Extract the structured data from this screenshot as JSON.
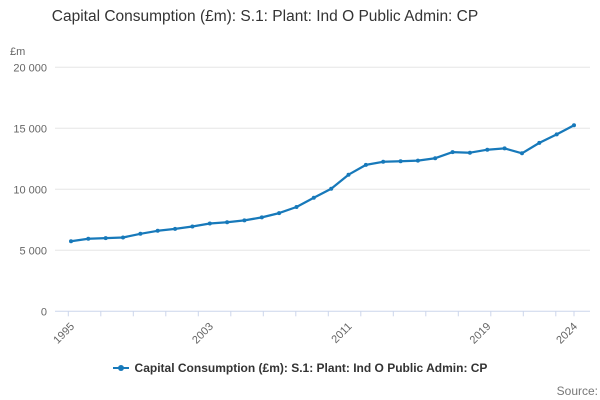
{
  "title": "Capital Consumption (£m): S.1: Plant: Ind O Public Admin: CP",
  "y_axis": {
    "unit_label": "£m"
  },
  "legend": {
    "label": "Capital Consumption (£m): S.1: Plant: Ind O Public Admin: CP"
  },
  "source_label": "Source:",
  "colors": {
    "line": "#1779ba",
    "grid": "#e6e6e6",
    "axis": "#ccd6eb",
    "text_muted": "#666666",
    "text_dark": "#333333"
  },
  "chart_data": {
    "type": "line",
    "title": "Capital Consumption (£m): S.1: Plant: Ind O Public Admin: CP",
    "ylabel": "£m",
    "xlabel": "",
    "grid": "horizontal",
    "legend_position": "bottom",
    "ylim": [
      0,
      20000
    ],
    "y_ticks": [
      0,
      5000,
      10000,
      15000,
      20000
    ],
    "y_tick_labels": [
      "0",
      "5 000",
      "10 000",
      "15 000",
      "20 000"
    ],
    "x_tick_labels": [
      {
        "year": 1995,
        "label": "1995"
      },
      {
        "year": 2003,
        "label": "2003"
      },
      {
        "year": 2011,
        "label": "2011"
      },
      {
        "year": 2019,
        "label": "2019"
      },
      {
        "year": 2024,
        "label": "2024"
      }
    ],
    "x": [
      1995,
      1996,
      1997,
      1998,
      1999,
      2000,
      2001,
      2002,
      2003,
      2004,
      2005,
      2006,
      2007,
      2008,
      2009,
      2010,
      2011,
      2012,
      2013,
      2014,
      2015,
      2016,
      2017,
      2018,
      2019,
      2020,
      2021,
      2022,
      2023,
      2024
    ],
    "series": [
      {
        "name": "Capital Consumption (£m): S.1: Plant: Ind O Public Admin: CP",
        "values": [
          5750,
          5950,
          6000,
          6050,
          6350,
          6600,
          6750,
          6950,
          7200,
          7300,
          7450,
          7700,
          8050,
          8550,
          9300,
          10050,
          11200,
          12000,
          12250,
          12300,
          12350,
          12550,
          13050,
          13000,
          13250,
          13350,
          12950,
          13800,
          14500,
          15250
        ]
      }
    ]
  }
}
